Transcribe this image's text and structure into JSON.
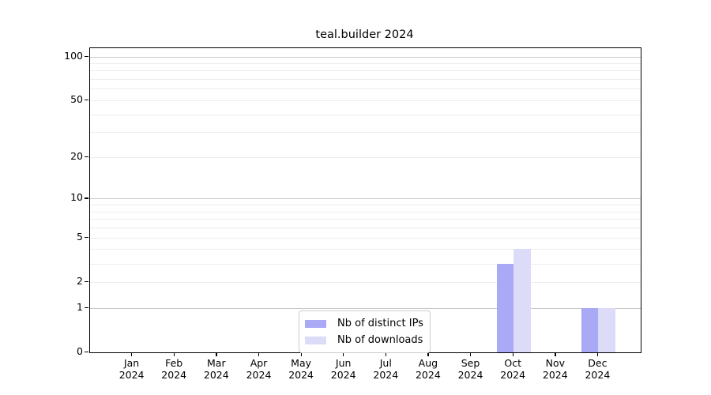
{
  "title": "teal.builder 2024",
  "chart_data": {
    "type": "bar",
    "title": "teal.builder 2024",
    "categories": [
      "Jan",
      "Feb",
      "Mar",
      "Apr",
      "May",
      "Jun",
      "Jul",
      "Aug",
      "Sep",
      "Oct",
      "Nov",
      "Dec"
    ],
    "category_year": "2024",
    "series": [
      {
        "name": "Nb of distinct IPs",
        "color": "#a9a9f5",
        "values": [
          0,
          0,
          0,
          0,
          0,
          0,
          0,
          0,
          0,
          3,
          0,
          1
        ]
      },
      {
        "name": "Nb of downloads",
        "color": "#dcdcf9",
        "values": [
          0,
          0,
          0,
          0,
          0,
          0,
          0,
          0,
          0,
          4,
          0,
          1
        ]
      }
    ],
    "yscale": "log1p",
    "ylim": [
      0,
      114
    ],
    "yticks": [
      100,
      50,
      20,
      10,
      5,
      2,
      1,
      0
    ],
    "grid_major": [
      1,
      10,
      100
    ],
    "grid_minor": [
      2,
      3,
      4,
      5,
      6,
      7,
      8,
      9,
      20,
      30,
      40,
      50,
      60,
      70,
      80,
      90
    ],
    "legend_position": "lower center",
    "colors": {
      "grid_major": "#c8c8c8",
      "grid_minor": "#ededed",
      "axis": "#000000",
      "background": "#ffffff"
    }
  }
}
